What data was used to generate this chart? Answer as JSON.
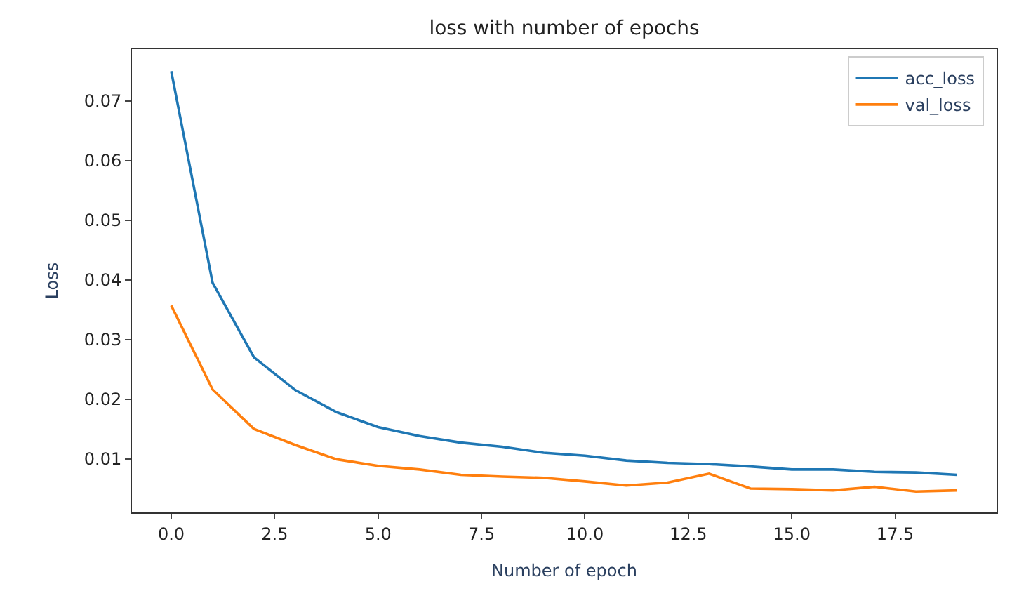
{
  "chart_data": {
    "type": "line",
    "title": "loss with number of epochs",
    "xlabel": "Number of epoch",
    "ylabel": "Loss",
    "x": [
      0,
      1,
      2,
      3,
      4,
      5,
      6,
      7,
      8,
      9,
      10,
      11,
      12,
      13,
      14,
      15,
      16,
      17,
      18,
      19
    ],
    "series": [
      {
        "name": "acc_loss",
        "color": "#1f77b4",
        "values": [
          0.075,
          0.0395,
          0.027,
          0.0215,
          0.0178,
          0.0153,
          0.0138,
          0.0127,
          0.012,
          0.011,
          0.0105,
          0.0097,
          0.0093,
          0.0091,
          0.0087,
          0.0082,
          0.0082,
          0.0078,
          0.0077,
          0.0073
        ]
      },
      {
        "name": "val_loss",
        "color": "#ff7f0e",
        "values": [
          0.0357,
          0.0216,
          0.015,
          0.0123,
          0.0099,
          0.0088,
          0.0082,
          0.0073,
          0.007,
          0.0068,
          0.0062,
          0.0055,
          0.006,
          0.0075,
          0.005,
          0.0049,
          0.0047,
          0.0053,
          0.0045,
          0.0047
        ]
      }
    ],
    "xlim": [
      -0.95,
      19.95
    ],
    "ylim": [
      0.001,
      0.0787
    ],
    "xticks": [
      {
        "value": 0,
        "label": "0.0"
      },
      2.5,
      {
        "value": 5,
        "label": "5.0"
      },
      7.5,
      {
        "value": 10,
        "label": "10.0"
      },
      12.5,
      {
        "value": 15,
        "label": "15.0"
      },
      17.5
    ],
    "yticks": [
      0.01,
      0.02,
      0.03,
      0.04,
      0.05,
      0.06,
      0.07
    ],
    "legend": "top right",
    "grid": false
  }
}
